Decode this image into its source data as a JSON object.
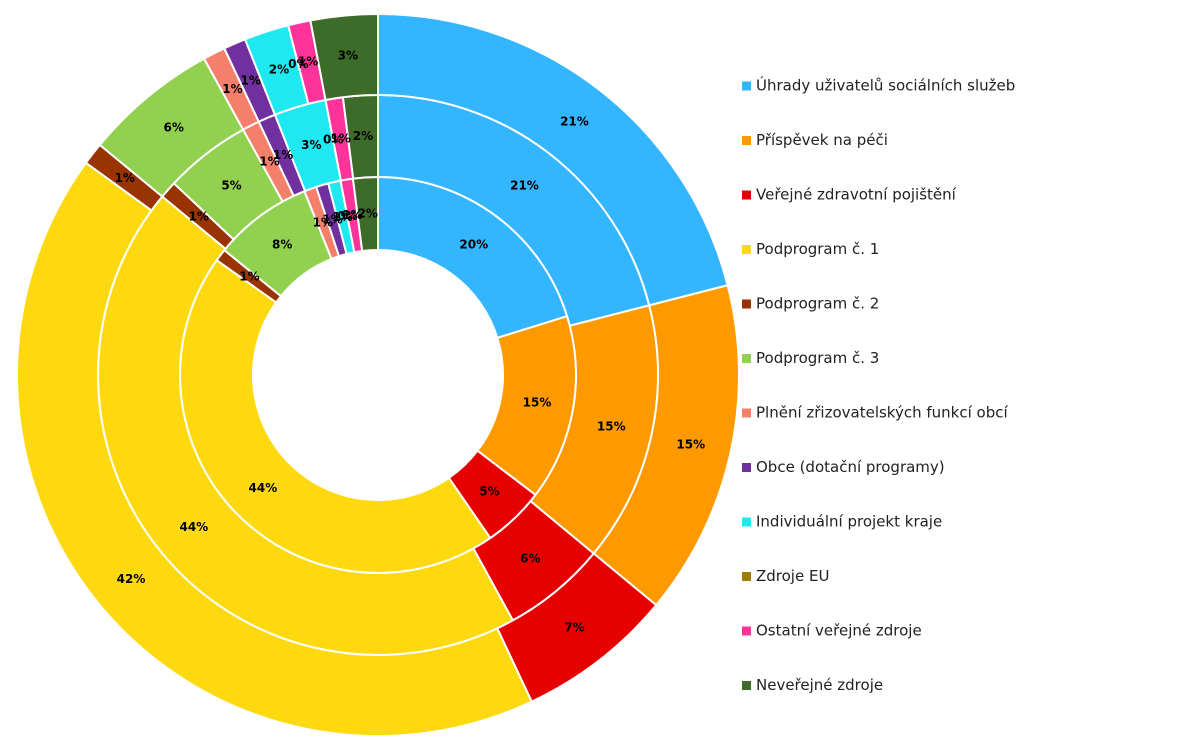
{
  "chart_data": {
    "type": "multi_donut",
    "categories": [
      "Úhrady uživatelů sociálních služeb",
      "Příspěvek na péči",
      "Veřejné zdravotní pojištění",
      "Podprogram č. 1",
      "Podprogram č. 2",
      "Podprogram č. 3",
      "Plnění zřizovatelských funkcí obcí",
      "Obce (dotační programy)",
      "Individuální projekt kraje",
      "Zdroje EU",
      "Ostatní veřejné zdroje",
      "Neveřejné zdroje"
    ],
    "colors": [
      "#33b5ff",
      "#ff9900",
      "#e60000",
      "#ffd90f",
      "#993300",
      "#92d050",
      "#f4806b",
      "#7030a0",
      "#1ee8f0",
      "#9c7d00",
      "#ff3399",
      "#3c6b2a"
    ],
    "series": [
      {
        "values": [
          20,
          15,
          5,
          44,
          1,
          8,
          1,
          1,
          1,
          0,
          1,
          2
        ],
        "value_labels": [
          "20%",
          "15%",
          "5%",
          "44%",
          "1%",
          "8%",
          "1%",
          "1%",
          "1%",
          "0%",
          "1%",
          "2%"
        ]
      },
      {
        "values": [
          21,
          15,
          6,
          44,
          1,
          5,
          1,
          1,
          3,
          0,
          1,
          2
        ],
        "value_labels": [
          "21%",
          "15%",
          "6%",
          "44%",
          "1%",
          "5%",
          "1%",
          "1%",
          "3%",
          "0%",
          "1%",
          "2%"
        ]
      },
      {
        "values": [
          21,
          15,
          7,
          42,
          1,
          6,
          1,
          1,
          2,
          0,
          1,
          3
        ],
        "value_labels": [
          "21%",
          "15%",
          "7%",
          "42%",
          "1%",
          "6%",
          "1%",
          "1%",
          "2%",
          "0%",
          "1%",
          "3%"
        ]
      }
    ],
    "legend": "right"
  }
}
